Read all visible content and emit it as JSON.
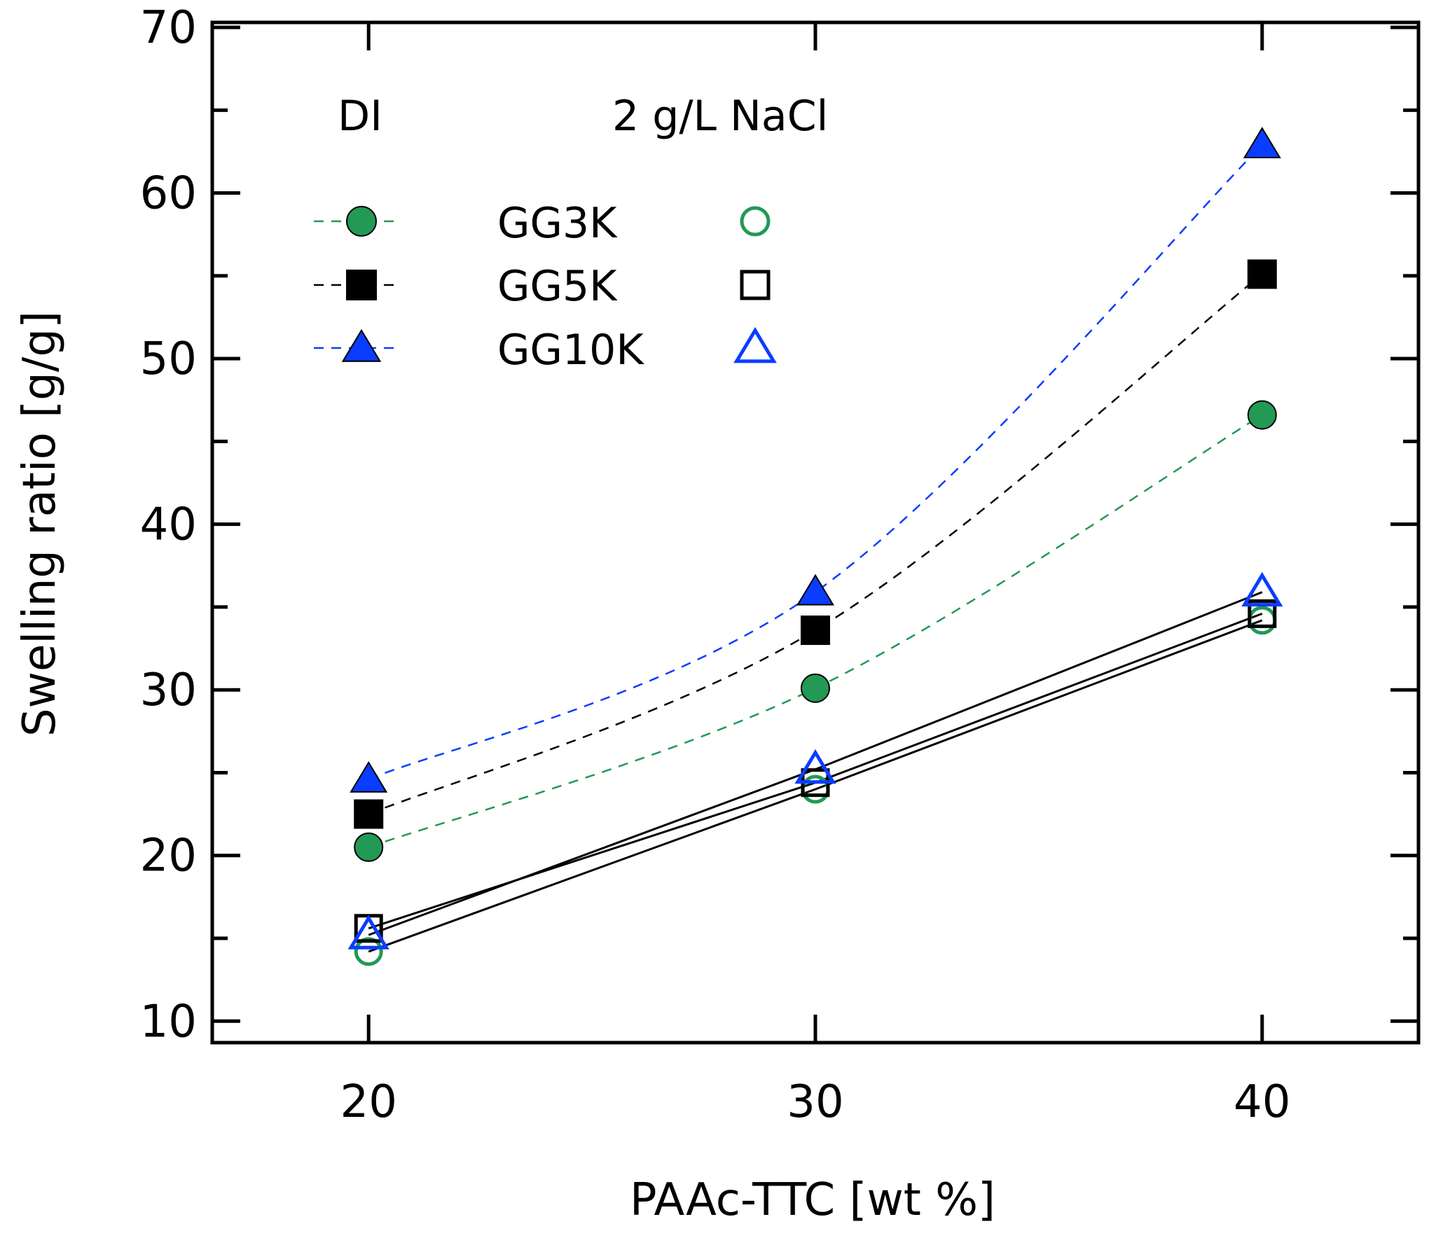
{
  "chart_data": {
    "type": "line",
    "xlabel": "PAAc-TTC [wt  %]",
    "ylabel": "Swelling ratio [g/g]",
    "xlim": [
      16.5,
      43.5
    ],
    "ylim": [
      8.7,
      70.3
    ],
    "x_ticks": [
      20,
      30,
      40
    ],
    "y_ticks": [
      10,
      20,
      30,
      40,
      50,
      60,
      70
    ],
    "y_minor_ticks": [
      15,
      25,
      35,
      45,
      55,
      65
    ],
    "grid": false,
    "legend": {
      "placement": "top-left",
      "header_di": "DI",
      "header_nacl": "2 g/L NaCl",
      "entries": [
        "GG3K",
        "GG5K",
        "GG10K"
      ]
    },
    "x": [
      20,
      30,
      40
    ],
    "series": [
      {
        "name": "GG3K",
        "condition": "DI",
        "marker": "circle",
        "filled": true,
        "color": "#229955",
        "line": "dashed",
        "values": [
          20.5,
          30.1,
          46.6
        ]
      },
      {
        "name": "GG5K",
        "condition": "DI",
        "marker": "square",
        "filled": true,
        "color": "#000000",
        "line": "dashed",
        "values": [
          22.5,
          33.6,
          55.1
        ]
      },
      {
        "name": "GG10K",
        "condition": "DI",
        "marker": "triangle",
        "filled": true,
        "color": "#0a3dff",
        "line": "dashed",
        "values": [
          24.6,
          35.9,
          62.9
        ]
      },
      {
        "name": "GG3K",
        "condition": "2 g/L NaCl",
        "marker": "circle",
        "filled": false,
        "color": "#229955",
        "line": "solid",
        "values": [
          14.2,
          24.0,
          34.2
        ]
      },
      {
        "name": "GG5K",
        "condition": "2 g/L NaCl",
        "marker": "square",
        "filled": false,
        "color": "#000000",
        "line": "solid",
        "values": [
          15.6,
          24.4,
          34.6
        ]
      },
      {
        "name": "GG10K",
        "condition": "2 g/L NaCl",
        "marker": "triangle",
        "filled": false,
        "color": "#0a3dff",
        "line": "solid",
        "values": [
          15.2,
          25.2,
          35.9
        ]
      }
    ]
  }
}
